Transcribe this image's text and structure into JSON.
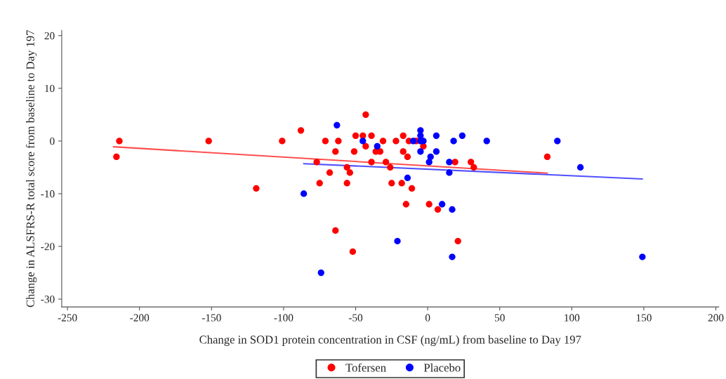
{
  "chart_data": {
    "type": "scatter",
    "xlabel": "Change in SOD1 protein concentration in CSF (ng/mL) from baseline to Day 197",
    "ylabel": "Change in ALSFRS-R total score from baseline to Day 197",
    "xlim": [
      -254,
      202
    ],
    "ylim": [
      -31.5,
      21
    ],
    "xticks": [
      -250,
      -200,
      -150,
      -100,
      -50,
      0,
      50,
      100,
      150,
      200
    ],
    "yticks": [
      -30,
      -20,
      -10,
      0,
      10,
      20
    ],
    "grid": false,
    "legend": "bottom",
    "series": [
      {
        "name": "Tofersen",
        "color": "#ff0000",
        "marker": "circle",
        "x": [
          -214,
          -216,
          -152,
          -101,
          -119,
          -88,
          -77,
          -75,
          -71,
          -68,
          -64,
          -62,
          -64,
          -56,
          -56,
          -54,
          -52,
          -51,
          -50,
          -45,
          -43,
          -43,
          -39,
          -39,
          -36,
          -33,
          -31,
          -29,
          -26,
          -25,
          -22,
          -18,
          -17,
          -17,
          -14,
          -15,
          -13,
          -11,
          -8,
          -3,
          1,
          7,
          19,
          21,
          30,
          32,
          83
        ],
        "values": [
          0,
          -3,
          0,
          0,
          -9,
          2,
          -4,
          -8,
          0,
          -6,
          -2,
          0,
          -17,
          -5,
          -8,
          -6,
          -21,
          -2,
          1,
          1,
          5,
          -1,
          1,
          -4,
          -2,
          -2,
          0,
          -4,
          -5,
          -8,
          0,
          -8,
          1,
          -2,
          -3,
          -12,
          0,
          -9,
          0,
          -1,
          -12,
          -13,
          -4,
          -19,
          -4,
          -5,
          -3
        ]
      },
      {
        "name": "Placebo",
        "color": "#0000ff",
        "marker": "circle",
        "x": [
          -63,
          -45,
          -35,
          -86,
          -74,
          -14,
          -21,
          -10,
          -5,
          -5,
          -5,
          -3,
          -5,
          2,
          1,
          6,
          6,
          18,
          24,
          41,
          15,
          15,
          10,
          17,
          17,
          90,
          106,
          149
        ],
        "values": [
          3,
          0,
          -1,
          -10,
          -25,
          -7,
          -19,
          0,
          2,
          1,
          0,
          0,
          -2,
          -3,
          -4,
          1,
          -2,
          0,
          1,
          0,
          -4,
          -6,
          -12,
          -13,
          -22,
          0,
          -5,
          -22
        ]
      },
      {
        "type": "line",
        "marker": "none",
        "color": "#ff5050",
        "x": [
          -218,
          83
        ],
        "values": [
          -1.1,
          -6.1
        ]
      },
      {
        "type": "line",
        "marker": "none",
        "color": "#5050ff",
        "x": [
          -86,
          149
        ],
        "values": [
          -4.3,
          -7.2
        ]
      }
    ]
  }
}
